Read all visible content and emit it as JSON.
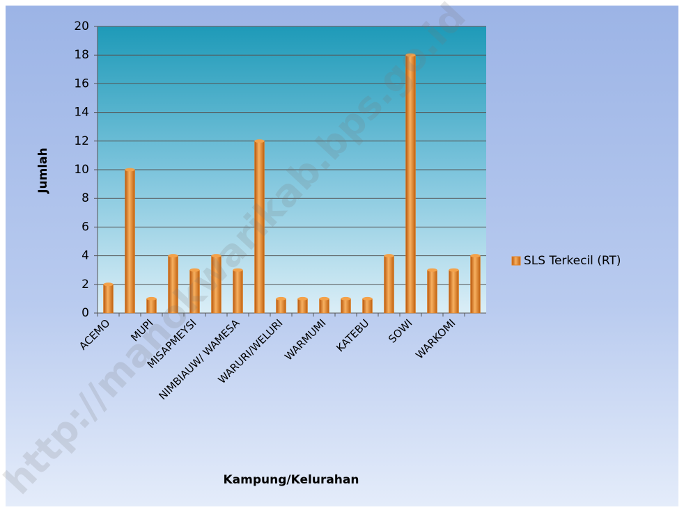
{
  "chart_data": {
    "type": "bar",
    "categories": [
      "ACEMO",
      null,
      "MUPI",
      null,
      "MISAPMEYSI",
      null,
      "NIMBIAUW/ WAMESA",
      null,
      "WARURI/WELURI",
      null,
      "WARMUMI",
      null,
      "KATEBU",
      null,
      "SOWI",
      null,
      "WARKOMI",
      null
    ],
    "series": [
      {
        "name": "SLS Terkecil (RT)",
        "color": "#e8821e",
        "values": [
          2,
          10,
          1,
          4,
          3,
          4,
          3,
          12,
          1,
          1,
          1,
          1,
          1,
          4,
          18,
          3,
          3,
          4
        ]
      }
    ],
    "ylim": [
      0,
      20
    ],
    "yticks": [
      0,
      2,
      4,
      6,
      8,
      10,
      12,
      14,
      16,
      18,
      20
    ],
    "grid": true,
    "ylabel": "Jumlah",
    "xlabel": "Kampung/Kelurahan",
    "legend": "right"
  },
  "watermark": "http://manokwarikab.bps.go.id"
}
